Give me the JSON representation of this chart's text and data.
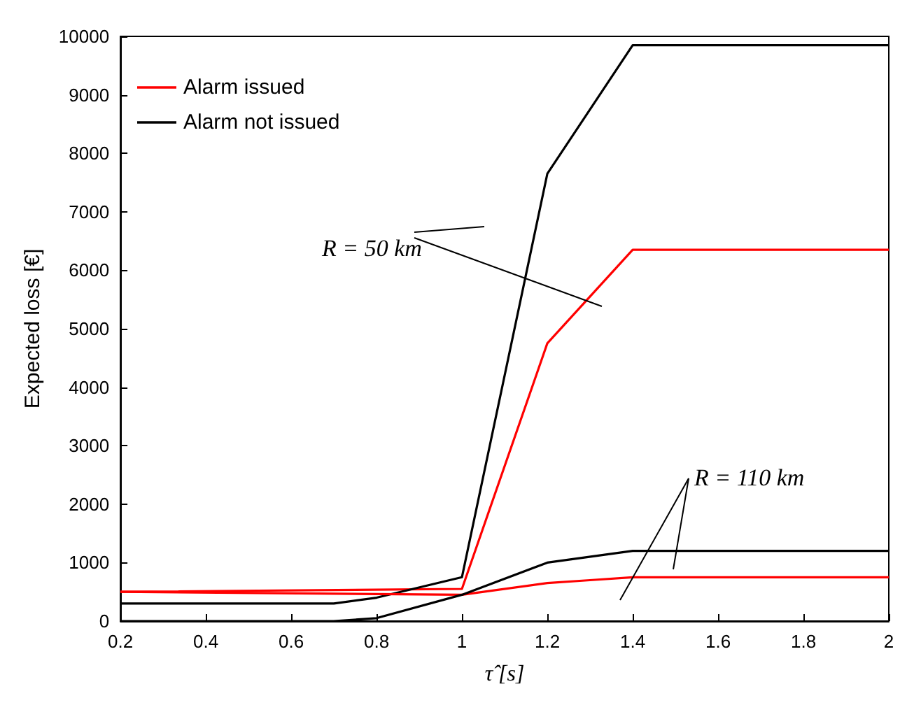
{
  "chart_data": {
    "type": "line",
    "xlabel": "τ̂ [s]",
    "ylabel": "Expected loss [€]",
    "xlim": [
      0.2,
      2
    ],
    "xticks": [
      0.2,
      0.4,
      0.6,
      0.8,
      1,
      1.2,
      1.4,
      1.6,
      1.8,
      2
    ],
    "ylim": [
      0,
      10000
    ],
    "yticks": [
      0,
      1000,
      2000,
      3000,
      4000,
      5000,
      6000,
      7000,
      8000,
      9000,
      10000
    ],
    "grid": false,
    "legend": "top left",
    "marker": "none",
    "line_style": "solid",
    "series": [
      {
        "name": "Alarm issued",
        "color": "#ff0000",
        "x": [
          0.2,
          1.0,
          1.2,
          1.4,
          2
        ],
        "values": [
          500,
          550,
          4750,
          6350,
          6350
        ]
      },
      {
        "name": "Alarm not issued",
        "color": "#000000",
        "x": [
          0.2,
          0.7,
          0.8,
          1.0,
          1.2,
          1.4,
          2
        ],
        "values": [
          300,
          300,
          400,
          750,
          7650,
          9850,
          9850
        ]
      },
      {
        "color": "#ff0000",
        "x": [
          0.2,
          1.0,
          1.2,
          1.3,
          1.4,
          2
        ],
        "values": [
          500,
          450,
          650,
          700,
          750,
          750
        ]
      },
      {
        "color": "#000000",
        "x": [
          0.2,
          0.7,
          0.8,
          1.0,
          1.2,
          1.4,
          2
        ],
        "values": [
          0,
          0,
          50,
          450,
          1000,
          1200,
          1200
        ]
      }
    ],
    "annotations": [
      "R = 50 km",
      "R = 110 km"
    ]
  }
}
